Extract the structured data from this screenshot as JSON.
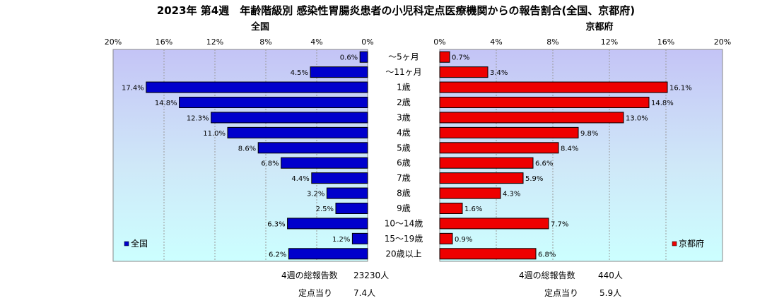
{
  "title": "2023年 第4週　年齢階級別 感染性胃腸炎患者の小児科定点医療機関からの報告割合(全国、京都府)",
  "chart_data": [
    {
      "type": "bar",
      "orientation": "horizontal",
      "direction": "right-to-left",
      "title": "全国",
      "categories": [
        "～5ヶ月",
        "～11ヶ月",
        "1歳",
        "2歳",
        "3歳",
        "4歳",
        "5歳",
        "6歳",
        "7歳",
        "8歳",
        "9歳",
        "10～14歳",
        "15～19歳",
        "20歳以上"
      ],
      "series": [
        {
          "name": "全国",
          "color": "#0000cc",
          "values": [
            0.6,
            4.5,
            17.4,
            14.8,
            12.3,
            11.0,
            8.6,
            6.8,
            4.4,
            3.2,
            2.5,
            6.3,
            1.2,
            6.2
          ],
          "labels": [
            "0.6%",
            "4.5%",
            "17.4%",
            "14.8%",
            "12.3%",
            "11.0%",
            "8.6%",
            "6.8%",
            "4.4%",
            "3.2%",
            "2.5%",
            "6.3%",
            "1.2%",
            "6.2%"
          ]
        }
      ],
      "xlim": [
        0,
        20
      ],
      "xticks": [
        "20%",
        "16%",
        "12%",
        "8%",
        "4%",
        "0%"
      ],
      "grid": true,
      "legend": "bottom-left",
      "footer": {
        "total_label": "4週の総報告数",
        "total_value": "23230人",
        "per_label": "定点当り",
        "per_value": "7.4人"
      }
    },
    {
      "type": "bar",
      "orientation": "horizontal",
      "direction": "left-to-right",
      "title": "京都府",
      "categories": [
        "～5ヶ月",
        "～11ヶ月",
        "1歳",
        "2歳",
        "3歳",
        "4歳",
        "5歳",
        "6歳",
        "7歳",
        "8歳",
        "9歳",
        "10～14歳",
        "15～19歳",
        "20歳以上"
      ],
      "series": [
        {
          "name": "京都府",
          "color": "#ee0000",
          "values": [
            0.7,
            3.4,
            16.1,
            14.8,
            13.0,
            9.8,
            8.4,
            6.6,
            5.9,
            4.3,
            1.6,
            7.7,
            0.9,
            6.8
          ],
          "labels": [
            "0.7%",
            "3.4%",
            "16.1%",
            "14.8%",
            "13.0%",
            "9.8%",
            "8.4%",
            "6.6%",
            "5.9%",
            "4.3%",
            "1.6%",
            "7.7%",
            "0.9%",
            "6.8%"
          ]
        }
      ],
      "xlim": [
        0,
        20
      ],
      "xticks": [
        "0%",
        "4%",
        "8%",
        "12%",
        "16%",
        "20%"
      ],
      "grid": true,
      "legend": "bottom-right",
      "footer": {
        "total_label": "4週の総報告数",
        "total_value": "440人",
        "per_label": "定点当り",
        "per_value": "5.9人"
      }
    }
  ]
}
